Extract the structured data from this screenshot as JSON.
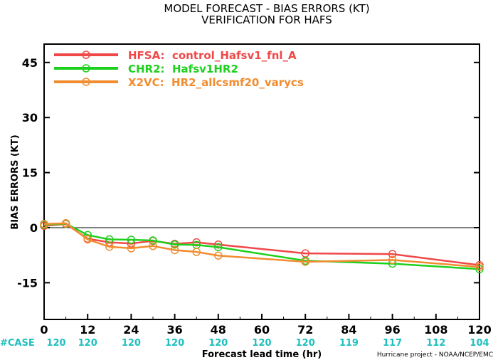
{
  "chart_data": {
    "type": "line",
    "title": "MODEL FORECAST - BIAS ERRORS (KT)",
    "subtitle": "VERIFICATION FOR HAFS",
    "xlabel": "Forecast lead time (hr)",
    "ylabel": "BIAS ERRORS (KT)",
    "xlim": [
      0,
      120
    ],
    "ylim": [
      -25,
      50
    ],
    "xticks": [
      0,
      12,
      24,
      36,
      48,
      60,
      72,
      84,
      96,
      108,
      120
    ],
    "yticks": [
      -15,
      0,
      15,
      30,
      45
    ],
    "zero_line": 0,
    "legend_position": "top-left",
    "case_label": "#CASE",
    "case_counts": [
      {
        "x": 0,
        "n": "120"
      },
      {
        "x": 12,
        "n": "120"
      },
      {
        "x": 24,
        "n": "120"
      },
      {
        "x": 36,
        "n": "120"
      },
      {
        "x": 48,
        "n": "120"
      },
      {
        "x": 60,
        "n": "120"
      },
      {
        "x": 72,
        "n": "120"
      },
      {
        "x": 84,
        "n": "119"
      },
      {
        "x": 96,
        "n": "117"
      },
      {
        "x": 108,
        "n": "112"
      },
      {
        "x": 120,
        "n": "104"
      }
    ],
    "case_color": "#1fbfbf",
    "series": [
      {
        "name": "HFSA:  control_Hafsv1_fnl_A",
        "color": "#f04848",
        "points": [
          [
            0,
            0.5
          ],
          [
            6,
            1.0
          ],
          [
            12,
            -3.0
          ],
          [
            18,
            -4.0
          ],
          [
            24,
            -4.3
          ],
          [
            30,
            -3.6
          ],
          [
            36,
            -4.4
          ],
          [
            42,
            -4.0
          ],
          [
            48,
            -4.6
          ],
          [
            72,
            -7.0
          ],
          [
            96,
            -7.2
          ],
          [
            120,
            -10.2
          ]
        ]
      },
      {
        "name": "CHR2:  Hafsv1HR2",
        "color": "#1ed01e",
        "points": [
          [
            0,
            0.8
          ],
          [
            6,
            1.1
          ],
          [
            12,
            -2.0
          ],
          [
            18,
            -3.2
          ],
          [
            24,
            -3.3
          ],
          [
            30,
            -3.5
          ],
          [
            36,
            -4.6
          ],
          [
            42,
            -4.7
          ],
          [
            48,
            -5.3
          ],
          [
            72,
            -9.0
          ],
          [
            96,
            -9.8
          ],
          [
            120,
            -11.3
          ]
        ]
      },
      {
        "name": "X2VC:  HR2_allcsmf20_varycs",
        "color": "#f28c30",
        "points": [
          [
            0,
            1.0
          ],
          [
            6,
            1.2
          ],
          [
            12,
            -3.2
          ],
          [
            18,
            -5.2
          ],
          [
            24,
            -5.6
          ],
          [
            30,
            -5.0
          ],
          [
            36,
            -6.1
          ],
          [
            42,
            -6.6
          ],
          [
            48,
            -7.6
          ],
          [
            72,
            -9.3
          ],
          [
            96,
            -8.8
          ],
          [
            120,
            -10.7
          ]
        ]
      }
    ],
    "credit": "Hurricane project - NOAA/NCEP/EMC"
  }
}
